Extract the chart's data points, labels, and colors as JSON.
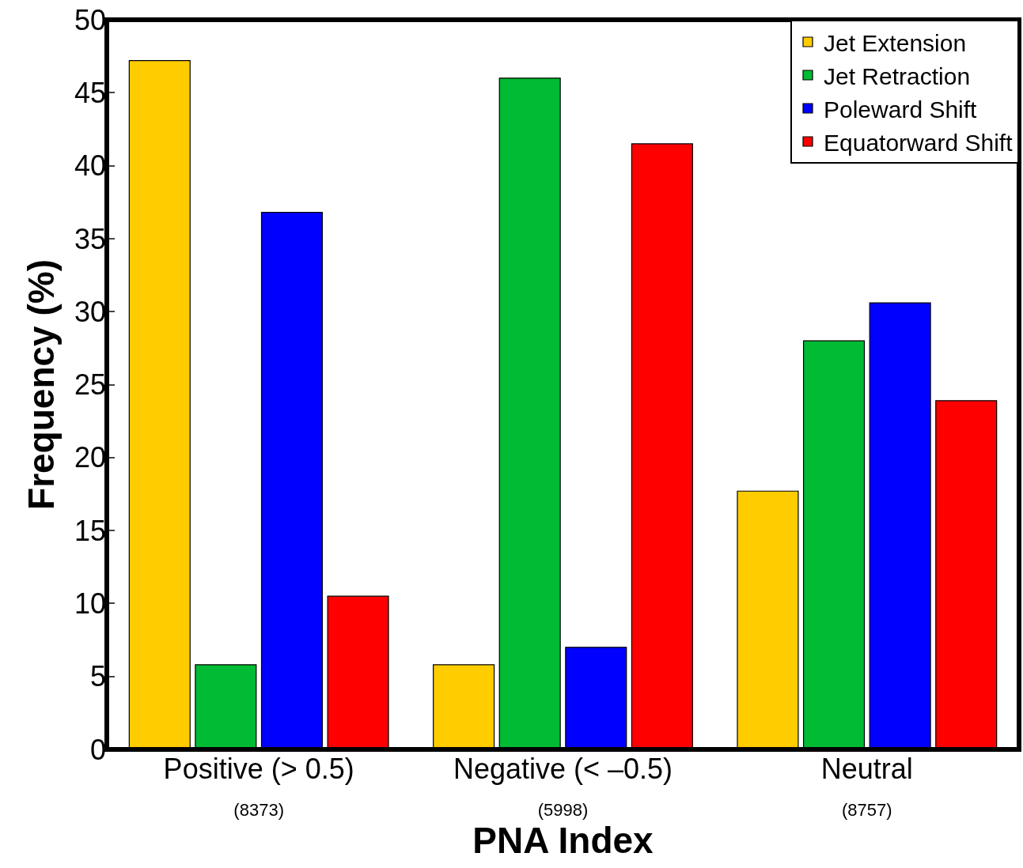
{
  "chart_data": {
    "type": "bar",
    "xlabel": "PNA Index",
    "ylabel": "Frequency (%)",
    "categories": [
      "Positive (> 0.5)\n(8373)",
      "Negative (< –0.5)\n(5998)",
      "Neutral\n(8757)"
    ],
    "series": [
      {
        "name": "Jet Extension",
        "color": "#ffcc00",
        "values": [
          47.2,
          5.8,
          17.7
        ]
      },
      {
        "name": "Jet Retraction",
        "color": "#00bb33",
        "values": [
          5.8,
          46.0,
          28.0
        ]
      },
      {
        "name": "Poleward Shift",
        "color": "#0000ff",
        "values": [
          36.8,
          7.0,
          30.6
        ]
      },
      {
        "name": "Equatorward Shift",
        "color": "#ff0000",
        "values": [
          10.5,
          41.5,
          23.9
        ]
      }
    ],
    "ylim": [
      0,
      50
    ],
    "yticks": [
      0,
      5,
      10,
      15,
      20,
      25,
      30,
      35,
      40,
      45,
      50
    ],
    "legend": "top right"
  }
}
